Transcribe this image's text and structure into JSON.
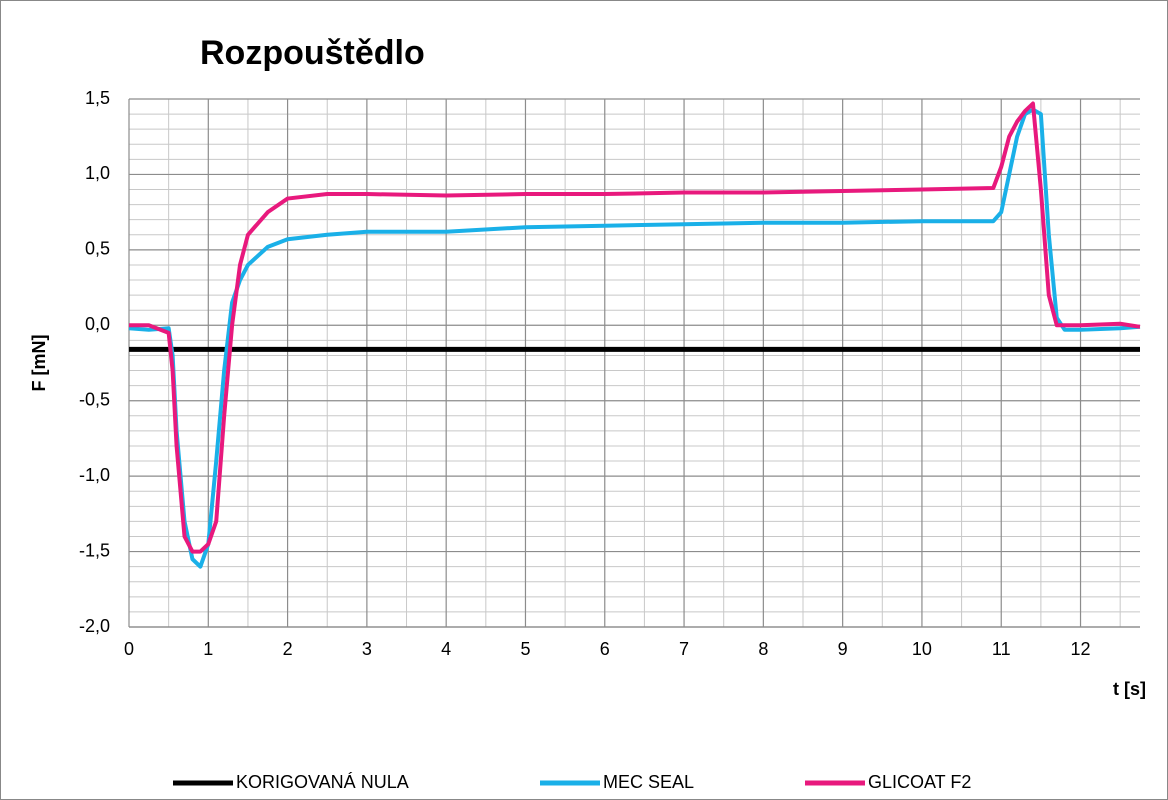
{
  "chart_data": {
    "type": "line",
    "title": "Rozpouštědlo",
    "y_label": "F [mN]",
    "x_label": "t [s]",
    "x": [
      0,
      0.25,
      0.5,
      0.55,
      0.6,
      0.7,
      0.8,
      0.9,
      1.0,
      1.1,
      1.2,
      1.3,
      1.4,
      1.5,
      1.75,
      2.0,
      2.5,
      3,
      4,
      5,
      6,
      7,
      8,
      9,
      10,
      10.9,
      11.0,
      11.1,
      11.2,
      11.3,
      11.4,
      11.5,
      11.6,
      11.7,
      11.8,
      12,
      12.5,
      12.75
    ],
    "series": [
      {
        "name": "KORIGOVANÁ NULA",
        "color": "#000000",
        "values": [
          -0.16,
          -0.16,
          -0.16,
          -0.16,
          -0.16,
          -0.16,
          -0.16,
          -0.16,
          -0.16,
          -0.16,
          -0.16,
          -0.16,
          -0.16,
          -0.16,
          -0.16,
          -0.16,
          -0.16,
          -0.16,
          -0.16,
          -0.16,
          -0.16,
          -0.16,
          -0.16,
          -0.16,
          -0.16,
          -0.16,
          -0.16,
          -0.16,
          -0.16,
          -0.16,
          -0.16,
          -0.16,
          -0.16,
          -0.16,
          -0.16,
          -0.16,
          -0.16,
          -0.16
        ]
      },
      {
        "name": "MEC SEAL",
        "color": "#1ab0e8",
        "values": [
          -0.02,
          -0.03,
          -0.02,
          -0.2,
          -0.7,
          -1.3,
          -1.55,
          -1.6,
          -1.45,
          -0.9,
          -0.3,
          0.15,
          0.3,
          0.4,
          0.52,
          0.57,
          0.6,
          0.62,
          0.62,
          0.65,
          0.66,
          0.67,
          0.68,
          0.68,
          0.69,
          0.69,
          0.75,
          1.0,
          1.25,
          1.4,
          1.43,
          1.4,
          0.6,
          0.05,
          -0.03,
          -0.03,
          -0.02,
          -0.01
        ]
      },
      {
        "name": "GLICOAT F2",
        "color": "#e8197d",
        "values": [
          0.0,
          0.0,
          -0.05,
          -0.3,
          -0.8,
          -1.4,
          -1.5,
          -1.5,
          -1.45,
          -1.3,
          -0.6,
          0.0,
          0.4,
          0.6,
          0.75,
          0.84,
          0.87,
          0.87,
          0.86,
          0.87,
          0.87,
          0.88,
          0.88,
          0.89,
          0.9,
          0.91,
          1.05,
          1.25,
          1.35,
          1.42,
          1.47,
          0.9,
          0.2,
          0.0,
          0.0,
          0.0,
          0.01,
          -0.01
        ]
      }
    ],
    "xlim": [
      0,
      12.75
    ],
    "ylim": [
      -2.0,
      1.5
    ],
    "xticks": [
      0,
      1,
      2,
      3,
      4,
      5,
      6,
      7,
      8,
      9,
      10,
      11,
      12
    ],
    "yticks": [
      {
        "value": -2.0,
        "label": "-2,0"
      },
      {
        "value": -1.5,
        "label": "-1,5"
      },
      {
        "value": -1.0,
        "label": "-1,0"
      },
      {
        "value": -0.5,
        "label": "-0,5"
      },
      {
        "value": 0.0,
        "label": "0,0"
      },
      {
        "value": 0.5,
        "label": "0,5"
      },
      {
        "value": 1.0,
        "label": "1,0"
      },
      {
        "value": 1.5,
        "label": "1,5"
      }
    ],
    "grid": true,
    "legend": "bottom"
  }
}
